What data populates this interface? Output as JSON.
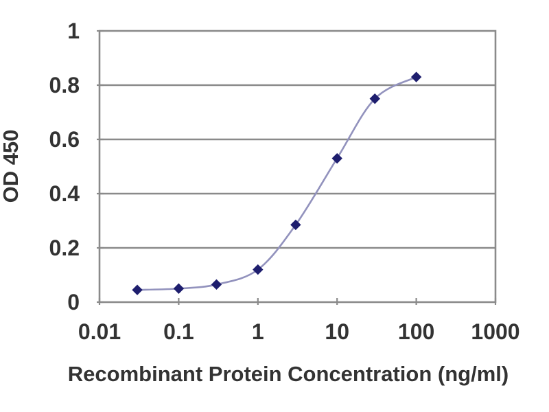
{
  "chart_data": {
    "type": "line",
    "title": "",
    "xlabel": "Recombinant Protein Concentration (ng/ml)",
    "ylabel": "OD 450",
    "x_scale": "log",
    "xlim": [
      0.01,
      1000
    ],
    "ylim": [
      0,
      1
    ],
    "grid": "horizontal",
    "legend": "none",
    "x_ticks": {
      "values": [
        0.01,
        0.1,
        1,
        10,
        100,
        1000
      ],
      "labels": [
        "0.01",
        "0.1",
        "1",
        "10",
        "100",
        "1000"
      ]
    },
    "y_ticks": {
      "values": [
        1,
        0.8,
        0.6,
        0.4,
        0.2,
        0
      ],
      "labels": [
        "1",
        "0.8",
        "0.6",
        "0.4",
        "0.2",
        "0"
      ]
    },
    "series": [
      {
        "name": "OD 450",
        "marker": "diamond",
        "x": [
          0.03,
          0.1,
          0.3,
          1,
          3,
          10,
          30,
          100
        ],
        "y": [
          0.045,
          0.05,
          0.065,
          0.12,
          0.285,
          0.53,
          0.75,
          0.83
        ]
      }
    ],
    "colors": {
      "marker": "#1e1e6e",
      "line": "#9292bd",
      "grid": "#8a8a8a",
      "frame": "#8a8a8a",
      "text": "#333333",
      "background": "#ffffff"
    }
  }
}
